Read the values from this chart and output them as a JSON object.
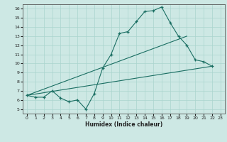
{
  "title": "",
  "xlabel": "Humidex (Indice chaleur)",
  "ylabel": "",
  "xlim": [
    -0.5,
    23.5
  ],
  "ylim": [
    4.5,
    16.5
  ],
  "xticks": [
    0,
    1,
    2,
    3,
    4,
    5,
    6,
    7,
    8,
    9,
    10,
    11,
    12,
    13,
    14,
    15,
    16,
    17,
    18,
    19,
    20,
    21,
    22,
    23
  ],
  "yticks": [
    5,
    6,
    7,
    8,
    9,
    10,
    11,
    12,
    13,
    14,
    15,
    16
  ],
  "bg_color": "#cde8e4",
  "line_color": "#1a6e62",
  "grid_color": "#aad4ce",
  "line1_x": [
    0,
    1,
    2,
    3,
    4,
    5,
    6,
    7,
    8,
    9,
    10,
    11,
    12,
    13,
    14,
    15,
    16,
    17,
    18,
    19,
    20,
    21,
    22
  ],
  "line1_y": [
    6.5,
    6.3,
    6.3,
    7.0,
    6.2,
    5.8,
    6.0,
    5.0,
    6.7,
    9.5,
    11.0,
    13.3,
    13.5,
    14.6,
    15.7,
    15.8,
    16.2,
    14.5,
    13.0,
    12.0,
    10.4,
    10.2,
    9.7
  ],
  "line2_x": [
    0,
    22
  ],
  "line2_y": [
    6.5,
    9.7
  ],
  "line3_x": [
    0,
    19
  ],
  "line3_y": [
    6.5,
    13.0
  ],
  "figsize": [
    3.2,
    2.0
  ],
  "dpi": 100
}
